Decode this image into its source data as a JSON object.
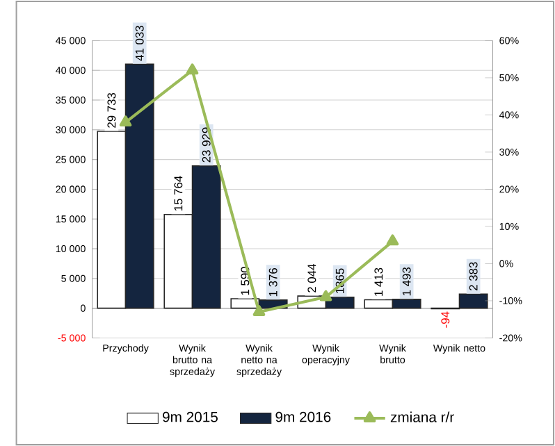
{
  "chart_data": {
    "type": "bar",
    "categories": [
      "Przychody",
      "Wynik brutto na sprzedaży",
      "Wynik netto na sprzedaży",
      "Wynik operacyjny",
      "Wynik brutto",
      "Wynik netto"
    ],
    "series": [
      {
        "name": "9m 2015",
        "color": "#ffffff",
        "values": [
          29733,
          15764,
          1590,
          2044,
          1413,
          -94
        ],
        "value_labels": [
          "29 733",
          "15 764",
          "1 590",
          "2 044",
          "1 413",
          "-94"
        ]
      },
      {
        "name": "9m 2016",
        "color": "#14253f",
        "values": [
          41033,
          23929,
          1376,
          1865,
          1493,
          2383
        ],
        "value_labels": [
          "41 033",
          "23 929",
          "1 376",
          "1865",
          "1 493",
          "2 383"
        ]
      },
      {
        "name": "zmiana r/r",
        "type": "line",
        "axis": "y2",
        "color": "#9bbb59",
        "marker": "triangle",
        "values": [
          38,
          52,
          -13,
          -9,
          6,
          null
        ]
      }
    ],
    "ylim": [
      -5000,
      45000
    ],
    "yticks": [
      {
        "value": -5000,
        "label": "-5 000"
      },
      {
        "value": 0,
        "label": "0"
      },
      {
        "value": 5000,
        "label": "5 000"
      },
      {
        "value": 10000,
        "label": "10 000"
      },
      {
        "value": 15000,
        "label": "15 000"
      },
      {
        "value": 20000,
        "label": "20 000"
      },
      {
        "value": 25000,
        "label": "25 000"
      },
      {
        "value": 30000,
        "label": "30 000"
      },
      {
        "value": 35000,
        "label": "35 000"
      },
      {
        "value": 40000,
        "label": "40 000"
      },
      {
        "value": 45000,
        "label": "45 000"
      }
    ],
    "y2lim": [
      -20,
      60
    ],
    "y2ticks": [
      {
        "value": -20,
        "label": "-20%"
      },
      {
        "value": -10,
        "label": "-10%"
      },
      {
        "value": 0,
        "label": "0%"
      },
      {
        "value": 10,
        "label": "10%"
      },
      {
        "value": 20,
        "label": "20%"
      },
      {
        "value": 30,
        "label": "30%"
      },
      {
        "value": 40,
        "label": "40%"
      },
      {
        "value": 50,
        "label": "50%"
      },
      {
        "value": 60,
        "label": "60%"
      }
    ],
    "grid": "y",
    "legend": "bottom"
  }
}
